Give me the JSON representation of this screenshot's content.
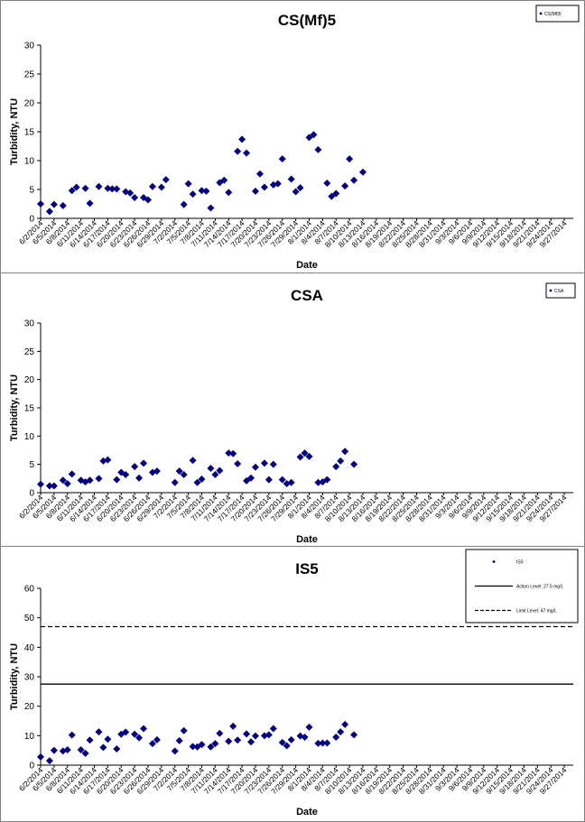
{
  "chart_data": [
    {
      "type": "scatter",
      "title": "CS(Mf)5",
      "xlabel": "Date",
      "ylabel": "Turbidity, NTU",
      "ylim": [
        0,
        30
      ],
      "yticks": [
        0,
        5,
        10,
        15,
        20,
        25,
        30
      ],
      "xlim": [
        "6/2/2014",
        "9/29/2014"
      ],
      "xticks": [
        "6/2/2014",
        "6/5/2014",
        "6/8/2014",
        "6/11/2014",
        "6/14/2014",
        "6/17/2014",
        "6/20/2014",
        "6/23/2014",
        "6/26/2014",
        "6/29/2014",
        "7/2/2014",
        "7/5/2014",
        "7/8/2014",
        "7/11/2014",
        "7/14/2014",
        "7/17/2014",
        "7/20/2014",
        "7/23/2014",
        "7/26/2014",
        "7/29/2014",
        "8/1/2014",
        "8/4/2014",
        "8/7/2014",
        "8/10/2014",
        "8/13/2014",
        "8/16/2014",
        "8/19/2014",
        "8/22/2014",
        "8/25/2014",
        "8/28/2014",
        "8/31/2014",
        "9/3/2014",
        "9/6/2014",
        "9/9/2014",
        "9/12/2014",
        "9/15/2014",
        "9/18/2014",
        "9/21/2014",
        "9/24/2014",
        "9/27/2014"
      ],
      "legend_position": "top-right",
      "grid": false,
      "series": [
        {
          "name": "CS(Mf)5",
          "color": "#000080",
          "marker": "diamond",
          "points": [
            [
              "6/2/2014",
              2.5
            ],
            [
              "6/4/2014",
              1.2
            ],
            [
              "6/5/2014",
              2.4
            ],
            [
              "6/7/2014",
              2.2
            ],
            [
              "6/9/2014",
              4.8
            ],
            [
              "6/10/2014",
              5.4
            ],
            [
              "6/12/2014",
              5.2
            ],
            [
              "6/13/2014",
              2.6
            ],
            [
              "6/15/2014",
              5.5
            ],
            [
              "6/17/2014",
              5.2
            ],
            [
              "6/18/2014",
              5.1
            ],
            [
              "6/19/2014",
              5.1
            ],
            [
              "6/21/2014",
              4.6
            ],
            [
              "6/22/2014",
              4.4
            ],
            [
              "6/23/2014",
              3.6
            ],
            [
              "6/25/2014",
              3.6
            ],
            [
              "6/26/2014",
              3.2
            ],
            [
              "6/27/2014",
              5.5
            ],
            [
              "6/29/2014",
              5.4
            ],
            [
              "6/30/2014",
              6.7
            ],
            [
              "7/4/2014",
              2.4
            ],
            [
              "7/5/2014",
              6.0
            ],
            [
              "7/6/2014",
              4.2
            ],
            [
              "7/8/2014",
              4.8
            ],
            [
              "7/9/2014",
              4.7
            ],
            [
              "7/10/2014",
              1.8
            ],
            [
              "7/12/2014",
              6.2
            ],
            [
              "7/13/2014",
              6.6
            ],
            [
              "7/14/2014",
              4.5
            ],
            [
              "7/16/2014",
              11.6
            ],
            [
              "7/17/2014",
              13.7
            ],
            [
              "7/18/2014",
              11.3
            ],
            [
              "7/20/2014",
              4.7
            ],
            [
              "7/21/2014",
              7.7
            ],
            [
              "7/22/2014",
              5.4
            ],
            [
              "7/24/2014",
              5.8
            ],
            [
              "7/25/2014",
              6.0
            ],
            [
              "7/26/2014",
              10.3
            ],
            [
              "7/28/2014",
              6.8
            ],
            [
              "7/29/2014",
              4.6
            ],
            [
              "7/30/2014",
              5.3
            ],
            [
              "8/1/2014",
              14.0
            ],
            [
              "8/2/2014",
              14.5
            ],
            [
              "8/3/2014",
              11.9
            ],
            [
              "8/5/2014",
              6.1
            ],
            [
              "8/6/2014",
              3.8
            ],
            [
              "8/7/2014",
              4.3
            ],
            [
              "8/9/2014",
              5.6
            ],
            [
              "8/10/2014",
              10.3
            ],
            [
              "8/11/2014",
              6.6
            ],
            [
              "8/13/2014",
              8.0
            ]
          ]
        }
      ]
    },
    {
      "type": "scatter",
      "title": "CSA",
      "xlabel": "Date",
      "ylabel": "Turbidity, NTU",
      "ylim": [
        0,
        30
      ],
      "yticks": [
        0,
        5,
        10,
        15,
        20,
        25,
        30
      ],
      "xlim": [
        "6/2/2014",
        "9/29/2014"
      ],
      "xticks": [
        "6/2/2014",
        "6/5/2014",
        "6/8/2014",
        "6/11/2014",
        "6/14/2014",
        "6/17/2014",
        "6/20/2014",
        "6/23/2014",
        "6/26/2014",
        "6/29/2014",
        "7/2/2014",
        "7/5/2014",
        "7/8/2014",
        "7/11/2014",
        "7/14/2014",
        "7/17/2014",
        "7/20/2014",
        "7/23/2014",
        "7/26/2014",
        "7/29/2014",
        "8/1/2014",
        "8/4/2014",
        "8/7/2014",
        "8/10/2014",
        "8/13/2014",
        "8/16/2014",
        "8/19/2014",
        "8/22/2014",
        "8/25/2014",
        "8/28/2014",
        "8/31/2014",
        "9/3/2014",
        "9/6/2014",
        "9/9/2014",
        "9/12/2014",
        "9/15/2014",
        "9/18/2014",
        "9/21/2014",
        "9/24/2014",
        "9/27/2014"
      ],
      "legend_position": "top-right",
      "grid": false,
      "series": [
        {
          "name": "CSA",
          "color": "#000080",
          "marker": "diamond",
          "points": [
            [
              "6/2/2014",
              1.5
            ],
            [
              "6/4/2014",
              1.2
            ],
            [
              "6/5/2014",
              1.2
            ],
            [
              "6/7/2014",
              2.2
            ],
            [
              "6/8/2014",
              1.6
            ],
            [
              "6/9/2014",
              3.3
            ],
            [
              "6/11/2014",
              2.2
            ],
            [
              "6/12/2014",
              1.9
            ],
            [
              "6/13/2014",
              2.2
            ],
            [
              "6/15/2014",
              2.5
            ],
            [
              "6/16/2014",
              5.6
            ],
            [
              "6/17/2014",
              5.8
            ],
            [
              "6/19/2014",
              2.3
            ],
            [
              "6/20/2014",
              3.6
            ],
            [
              "6/21/2014",
              3.2
            ],
            [
              "6/23/2014",
              4.6
            ],
            [
              "6/24/2014",
              2.6
            ],
            [
              "6/25/2014",
              5.2
            ],
            [
              "6/27/2014",
              3.6
            ],
            [
              "6/28/2014",
              3.8
            ],
            [
              "7/2/2014",
              1.8
            ],
            [
              "7/3/2014",
              3.8
            ],
            [
              "7/4/2014",
              3.2
            ],
            [
              "7/6/2014",
              5.7
            ],
            [
              "7/7/2014",
              1.8
            ],
            [
              "7/8/2014",
              2.4
            ],
            [
              "7/10/2014",
              4.3
            ],
            [
              "7/11/2014",
              3.2
            ],
            [
              "7/12/2014",
              3.9
            ],
            [
              "7/14/2014",
              7.0
            ],
            [
              "7/15/2014",
              6.9
            ],
            [
              "7/16/2014",
              5.1
            ],
            [
              "7/18/2014",
              2.1
            ],
            [
              "7/19/2014",
              2.6
            ],
            [
              "7/20/2014",
              4.5
            ],
            [
              "7/22/2014",
              5.2
            ],
            [
              "7/23/2014",
              2.3
            ],
            [
              "7/24/2014",
              5.0
            ],
            [
              "7/26/2014",
              2.3
            ],
            [
              "7/27/2014",
              1.6
            ],
            [
              "7/28/2014",
              1.8
            ],
            [
              "7/30/2014",
              6.3
            ],
            [
              "7/31/2014",
              7.0
            ],
            [
              "8/1/2014",
              6.4
            ],
            [
              "8/3/2014",
              1.8
            ],
            [
              "8/4/2014",
              1.9
            ],
            [
              "8/5/2014",
              2.3
            ],
            [
              "8/7/2014",
              4.6
            ],
            [
              "8/8/2014",
              5.6
            ],
            [
              "8/9/2014",
              7.3
            ],
            [
              "8/11/2014",
              5.0
            ]
          ]
        }
      ]
    },
    {
      "type": "scatter",
      "title": "IS5",
      "xlabel": "Date",
      "ylabel": "Turbidity, NTU",
      "ylim": [
        0,
        60
      ],
      "yticks": [
        0,
        10,
        20,
        30,
        40,
        50,
        60
      ],
      "xlim": [
        "6/2/2014",
        "9/29/2014"
      ],
      "xticks": [
        "6/2/2014",
        "6/5/2014",
        "6/8/2014",
        "6/11/2014",
        "6/14/2014",
        "6/17/2014",
        "6/20/2014",
        "6/23/2014",
        "6/26/2014",
        "6/29/2014",
        "7/2/2014",
        "7/5/2014",
        "7/8/2014",
        "7/11/2014",
        "7/14/2014",
        "7/17/2014",
        "7/20/2014",
        "7/23/2014",
        "7/26/2014",
        "7/29/2014",
        "8/1/2014",
        "8/4/2014",
        "8/7/2014",
        "8/10/2014",
        "8/13/2014",
        "8/16/2014",
        "8/19/2014",
        "8/22/2014",
        "8/25/2014",
        "8/28/2014",
        "8/31/2014",
        "9/3/2014",
        "9/6/2014",
        "9/9/2014",
        "9/12/2014",
        "9/15/2014",
        "9/18/2014",
        "9/21/2014",
        "9/24/2014",
        "9/27/2014"
      ],
      "legend_position": "top-right",
      "grid": false,
      "series": [
        {
          "name": "IS5",
          "color": "#000080",
          "marker": "diamond",
          "points": [
            [
              "6/2/2014",
              2.8
            ],
            [
              "6/4/2014",
              1.5
            ],
            [
              "6/5/2014",
              5.0
            ],
            [
              "6/7/2014",
              4.8
            ],
            [
              "6/8/2014",
              5.2
            ],
            [
              "6/9/2014",
              10.2
            ],
            [
              "6/11/2014",
              5.2
            ],
            [
              "6/12/2014",
              4.0
            ],
            [
              "6/13/2014",
              8.5
            ],
            [
              "6/15/2014",
              11.3
            ],
            [
              "6/16/2014",
              6.0
            ],
            [
              "6/17/2014",
              8.8
            ],
            [
              "6/19/2014",
              5.5
            ],
            [
              "6/20/2014",
              10.5
            ],
            [
              "6/21/2014",
              11.2
            ],
            [
              "6/23/2014",
              10.5
            ],
            [
              "6/24/2014",
              9.3
            ],
            [
              "6/25/2014",
              12.4
            ],
            [
              "6/27/2014",
              7.3
            ],
            [
              "6/28/2014",
              8.6
            ],
            [
              "7/2/2014",
              4.8
            ],
            [
              "7/3/2014",
              8.3
            ],
            [
              "7/4/2014",
              11.7
            ],
            [
              "7/6/2014",
              6.3
            ],
            [
              "7/7/2014",
              6.2
            ],
            [
              "7/8/2014",
              7.0
            ],
            [
              "7/10/2014",
              6.2
            ],
            [
              "7/11/2014",
              7.3
            ],
            [
              "7/12/2014",
              10.8
            ],
            [
              "7/14/2014",
              8.1
            ],
            [
              "7/15/2014",
              13.2
            ],
            [
              "7/16/2014",
              8.5
            ],
            [
              "7/18/2014",
              10.6
            ],
            [
              "7/19/2014",
              7.9
            ],
            [
              "7/20/2014",
              9.9
            ],
            [
              "7/22/2014",
              10.0
            ],
            [
              "7/23/2014",
              10.3
            ],
            [
              "7/24/2014",
              12.4
            ],
            [
              "7/26/2014",
              7.7
            ],
            [
              "7/27/2014",
              6.6
            ],
            [
              "7/28/2014",
              8.6
            ],
            [
              "7/30/2014",
              9.9
            ],
            [
              "7/31/2014",
              9.5
            ],
            [
              "8/1/2014",
              12.9
            ],
            [
              "8/3/2014",
              7.4
            ],
            [
              "8/4/2014",
              7.5
            ],
            [
              "8/5/2014",
              7.5
            ],
            [
              "8/7/2014",
              9.5
            ],
            [
              "8/8/2014",
              11.3
            ],
            [
              "8/9/2014",
              13.8
            ],
            [
              "8/11/2014",
              10.3
            ]
          ]
        },
        {
          "name": "Action Level: 27.5 mg/L",
          "type": "line",
          "style": "solid",
          "color": "#000000",
          "points": [
            [
              "6/2/2014",
              27.5
            ],
            [
              "9/29/2014",
              27.5
            ]
          ]
        },
        {
          "name": "Limit Level: 47 mg/L",
          "type": "line",
          "style": "dashed",
          "color": "#000000",
          "points": [
            [
              "6/2/2014",
              47
            ],
            [
              "9/29/2014",
              47
            ]
          ]
        }
      ]
    }
  ]
}
